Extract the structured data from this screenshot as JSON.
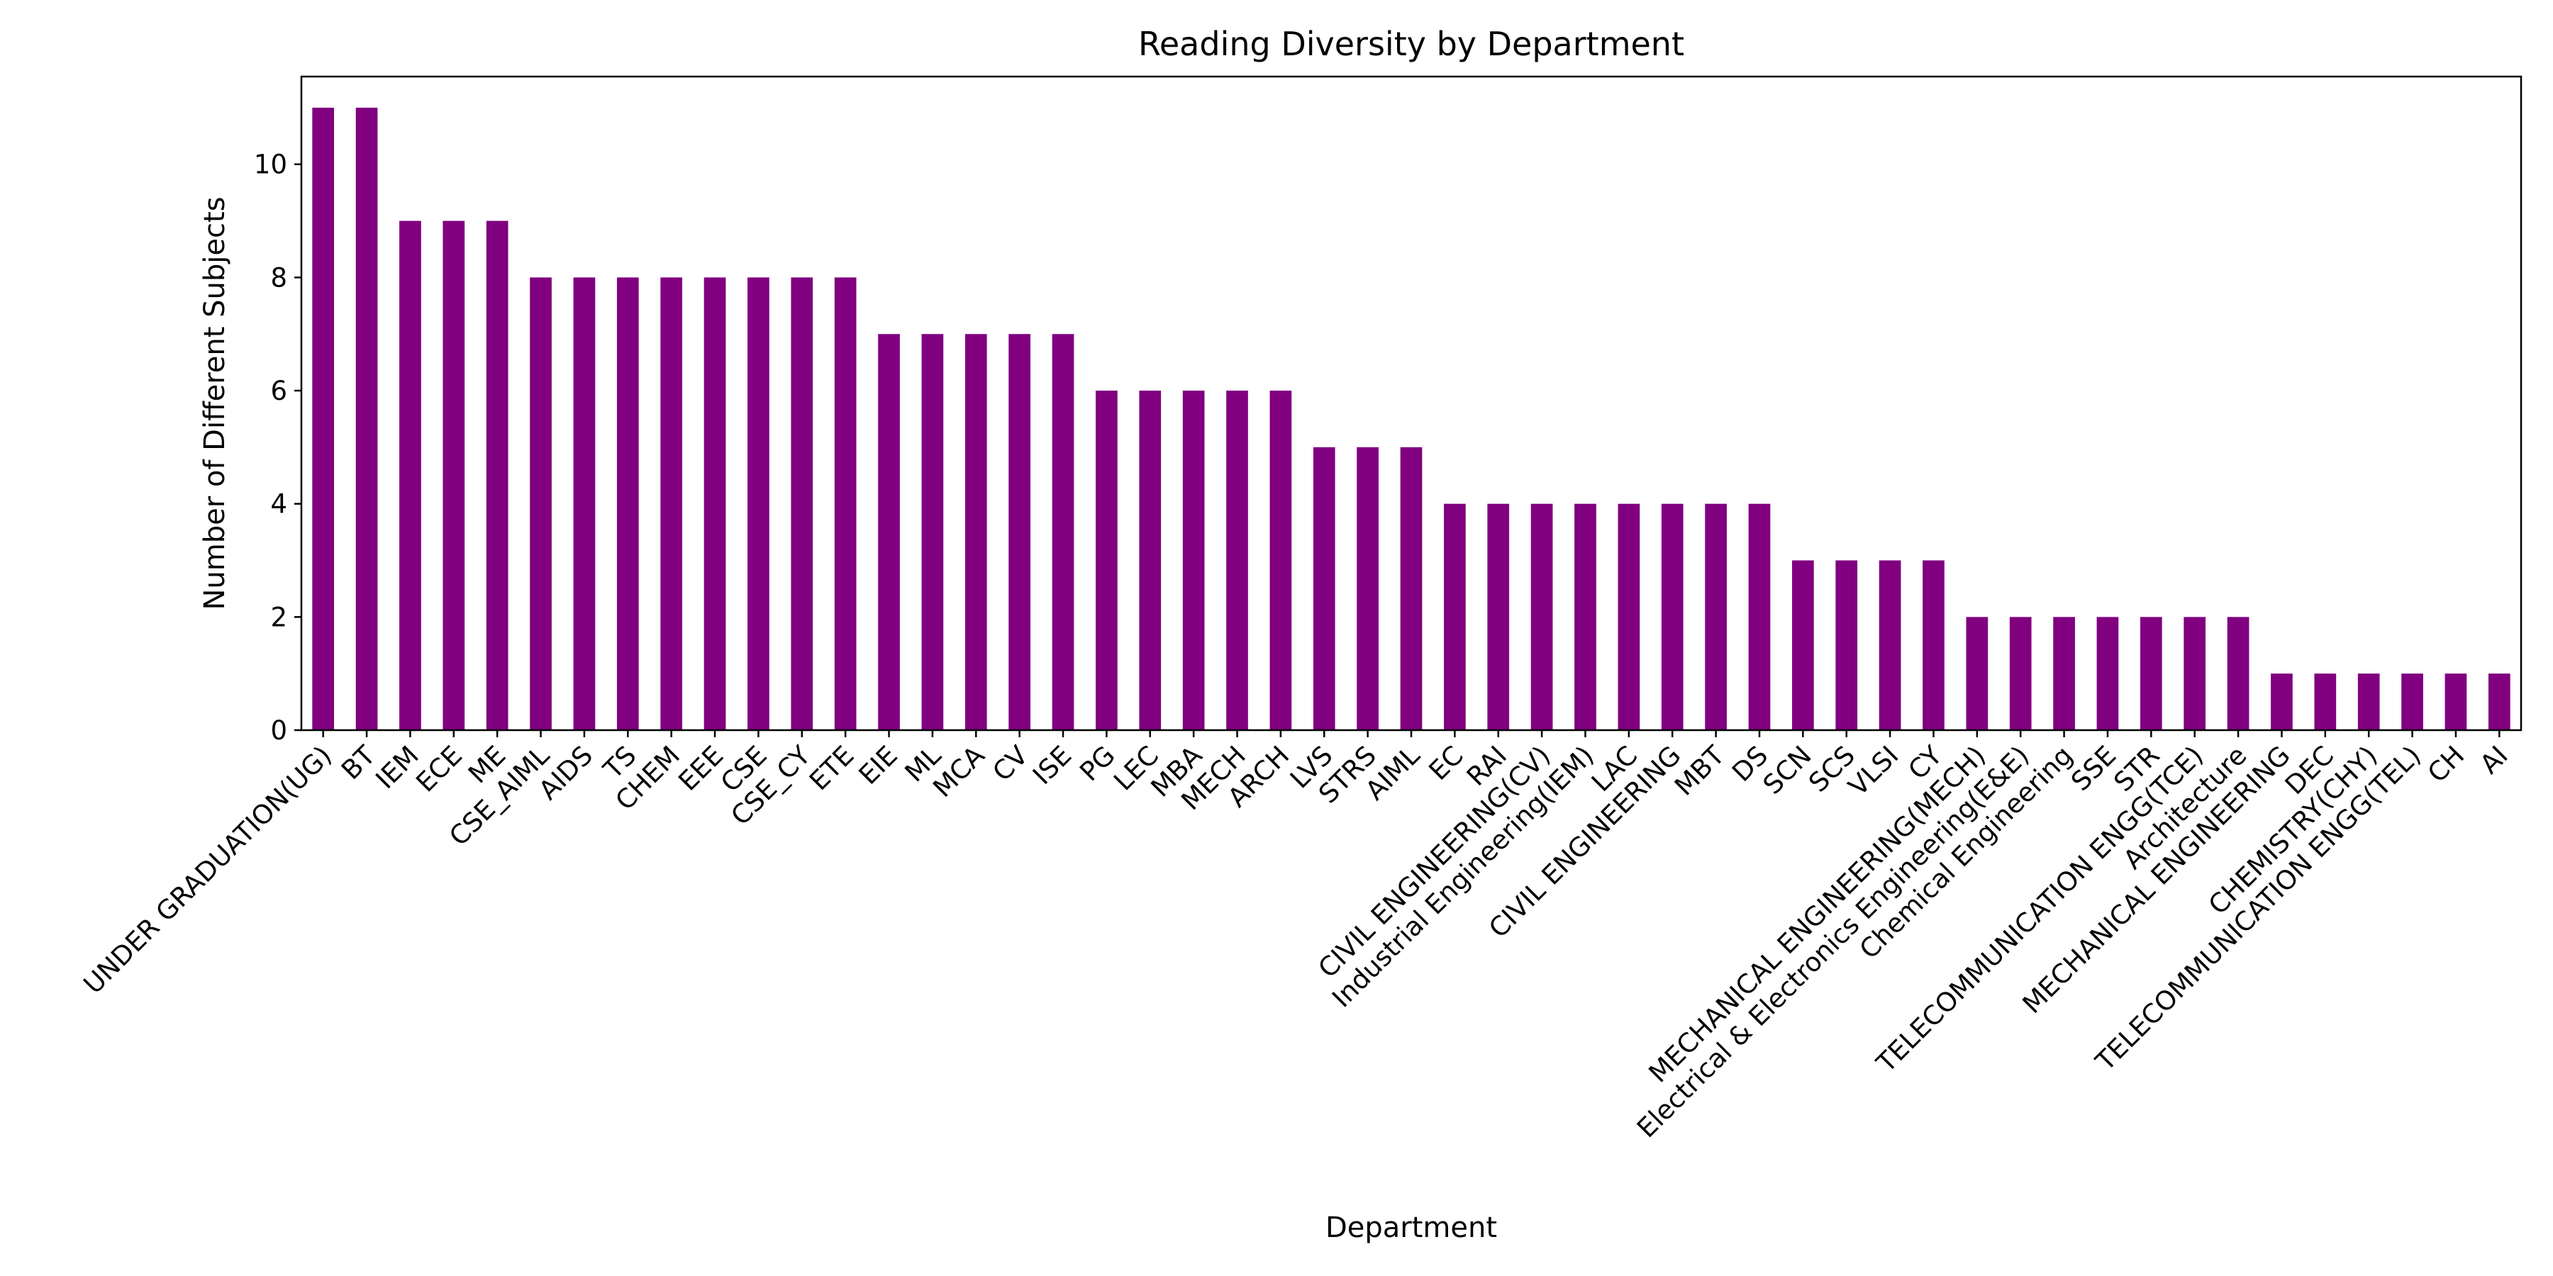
{
  "chart_data": {
    "type": "bar",
    "title": "Reading Diversity by Department",
    "xlabel": "Department",
    "ylabel": "Number of Different Subjects",
    "ylim": [
      0,
      11.55
    ],
    "yticks": [
      0,
      2,
      4,
      6,
      8,
      10
    ],
    "grid": false,
    "legend": "none",
    "bar_color": "#800080",
    "categories": [
      "UNDER GRADUATION(UG)",
      "BT",
      "IEM",
      "ECE",
      "ME",
      "CSE_AIML",
      "AIDS",
      "TS",
      "CHEM",
      "EEE",
      "CSE",
      "CSE_CY",
      "ETE",
      "EIE",
      "ML",
      "MCA",
      "CV",
      "ISE",
      "PG",
      "LEC",
      "MBA",
      "MECH",
      "ARCH",
      "LVS",
      "STRS",
      "AIML",
      "EC",
      "RAI",
      "CIVIL ENGINEERING(CV)",
      "Industrial Engineering(IEM)",
      "LAC",
      "CIVIL ENGINEERING",
      "MBT",
      "DS",
      "SCN",
      "SCS",
      "VLSI",
      "CY",
      "MECHANICAL ENGINEERING(MECH)",
      "Electrical & Electronics Engineering(E&E)",
      "Chemical Engineering",
      "SSE",
      "STR",
      "TELECOMMUNICATION ENGG(TCE)",
      "Architecture",
      "MECHANICAL ENGINEERING",
      "DEC",
      "CHEMISTRY(CHY)",
      "TELECOMMUNICATION ENGG(TEL)",
      "CH",
      "AI"
    ],
    "values": [
      11,
      11,
      9,
      9,
      9,
      8,
      8,
      8,
      8,
      8,
      8,
      8,
      8,
      7,
      7,
      7,
      7,
      7,
      6,
      6,
      6,
      6,
      6,
      5,
      5,
      5,
      4,
      4,
      4,
      4,
      4,
      4,
      4,
      4,
      3,
      3,
      3,
      3,
      2,
      2,
      2,
      2,
      2,
      2,
      2,
      1,
      1,
      1,
      1,
      1,
      1
    ]
  }
}
